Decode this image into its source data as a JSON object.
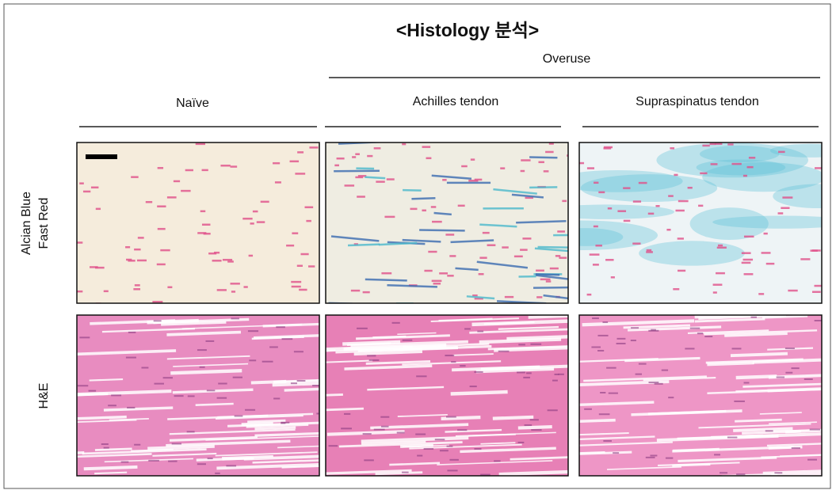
{
  "title": "<Histology 분석>",
  "group_label": "Overuse",
  "columns": [
    "Naïve",
    "Achilles tendon",
    "Supraspinatus tendon"
  ],
  "rows": [
    [
      "Alcian Blue",
      "Fast Red"
    ],
    [
      "H&E"
    ]
  ]
}
